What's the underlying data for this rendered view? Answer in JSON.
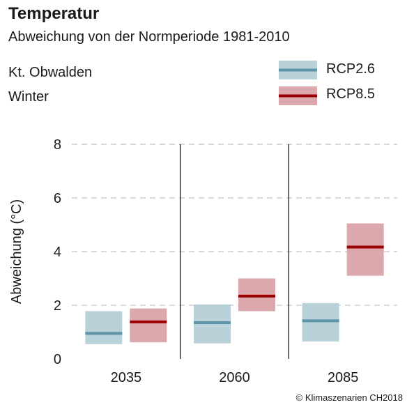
{
  "chart_data": {
    "type": "bar",
    "title": "Temperatur",
    "subtitle": "Abweichung von der Normperiode 1981-2010",
    "region": "Kt. Obwalden",
    "season": "Winter",
    "ylabel": "Abweichung (°C)",
    "xlabel": "",
    "ylim": [
      0,
      8
    ],
    "yticks": [
      0,
      2,
      4,
      6,
      8
    ],
    "grid": true,
    "legend_position": "top-right",
    "categories": [
      "2035",
      "2060",
      "2085"
    ],
    "series": [
      {
        "name": "RCP2.6",
        "band_color": "#b9d2da",
        "line_color": "#5e93a8",
        "median": [
          0.95,
          1.35,
          1.42
        ],
        "low": [
          0.55,
          0.58,
          0.65
        ],
        "high": [
          1.78,
          2.03,
          2.08
        ]
      },
      {
        "name": "RCP8.5",
        "band_color": "#dba9ad",
        "line_color": "#9b0000",
        "median": [
          1.38,
          2.34,
          4.17
        ],
        "low": [
          0.62,
          1.78,
          3.1
        ],
        "high": [
          1.88,
          3.0,
          5.05
        ]
      }
    ],
    "credit": "© Klimaszenarien CH2018"
  }
}
